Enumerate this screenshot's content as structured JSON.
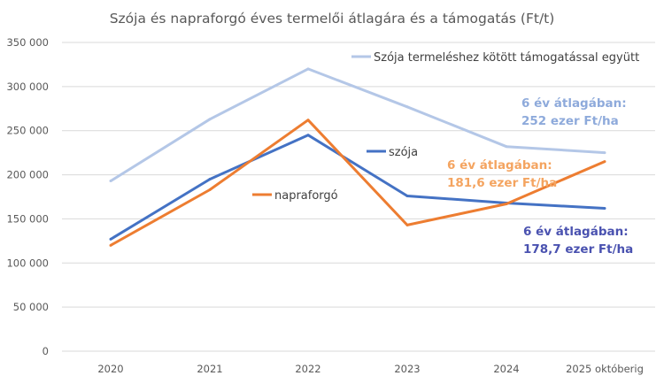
{
  "chart_data": {
    "type": "line",
    "title": "Szója és napraforgó éves termelői átlagára és a támogatás (Ft/t)",
    "xlabel": "",
    "ylabel": "",
    "categories": [
      "2020",
      "2021",
      "2022",
      "2023",
      "2024",
      "2025 októberig"
    ],
    "ylim": [
      0,
      350000
    ],
    "yticks": [
      0,
      50000,
      100000,
      150000,
      200000,
      250000,
      300000,
      350000
    ],
    "ytick_labels": [
      "0",
      "50 000",
      "100 000",
      "150 000",
      "200 000",
      "250 000",
      "300 000",
      "350 000"
    ],
    "grid": true,
    "series": [
      {
        "name": "Szója termeléshez kötött támogatással együtt",
        "color": "#b4c7e7",
        "values": [
          193000,
          263000,
          320000,
          277000,
          232000,
          225000
        ]
      },
      {
        "name": "szója",
        "color": "#4472c4",
        "values": [
          127000,
          195000,
          245000,
          176000,
          168000,
          162000
        ]
      },
      {
        "name": "napraforgó",
        "color": "#ed7d31",
        "values": [
          120000,
          183000,
          262000,
          143000,
          167000,
          215000
        ]
      }
    ],
    "annotations": [
      {
        "lines": [
          "6 év átlagában:",
          "252 ezer Ft/ha"
        ],
        "color": "#8eaadb"
      },
      {
        "lines": [
          "6 év átlagában:",
          "181,6 ezer Ft/ha"
        ],
        "color": "#f4a460"
      },
      {
        "lines": [
          "6 év átlagában:",
          "178,7 ezer Ft/ha"
        ],
        "color": "#4a52b0"
      }
    ]
  }
}
